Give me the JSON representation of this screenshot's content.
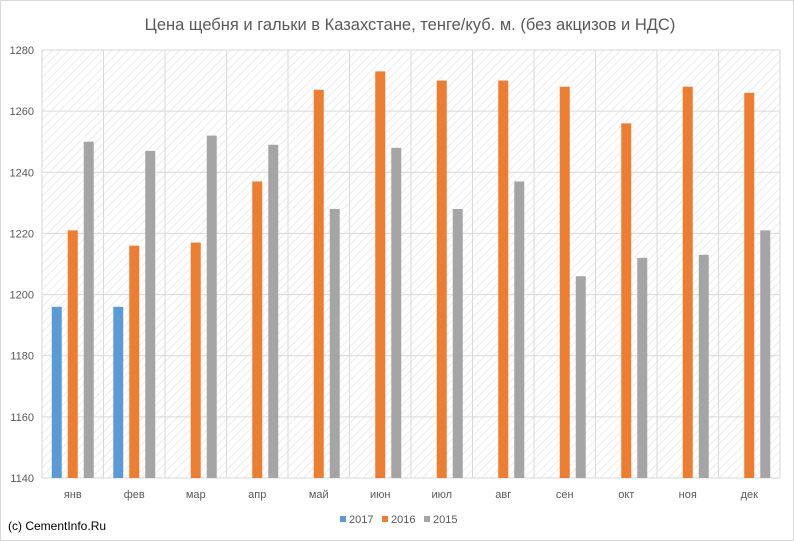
{
  "chart_data": {
    "type": "bar",
    "title": "Цена щебня и гальки в Казахстане, тенге/куб. м. (без акцизов и НДС)",
    "xlabel": "",
    "ylabel": "",
    "ylim": [
      1140,
      1280
    ],
    "yticks": [
      1140,
      1160,
      1180,
      1200,
      1220,
      1240,
      1260,
      1280
    ],
    "categories": [
      "янв",
      "фев",
      "мар",
      "апр",
      "май",
      "июн",
      "июл",
      "авг",
      "сен",
      "окт",
      "ноя",
      "дек"
    ],
    "series": [
      {
        "name": "2017",
        "color": "#5B9BD5",
        "values": [
          1196,
          1196,
          null,
          null,
          null,
          null,
          null,
          null,
          null,
          null,
          null,
          null
        ]
      },
      {
        "name": "2016",
        "color": "#ED7D31",
        "values": [
          1221,
          1216,
          1217,
          1237,
          1267,
          1273,
          1270,
          1270,
          1268,
          1256,
          1268,
          1266
        ]
      },
      {
        "name": "2015",
        "color": "#A5A5A5",
        "values": [
          1250,
          1247,
          1252,
          1249,
          1228,
          1248,
          1228,
          1237,
          1206,
          1212,
          1213,
          1221
        ]
      }
    ],
    "grid": true,
    "legend_position": "bottom"
  },
  "credit": "(c) CementInfo.Ru"
}
